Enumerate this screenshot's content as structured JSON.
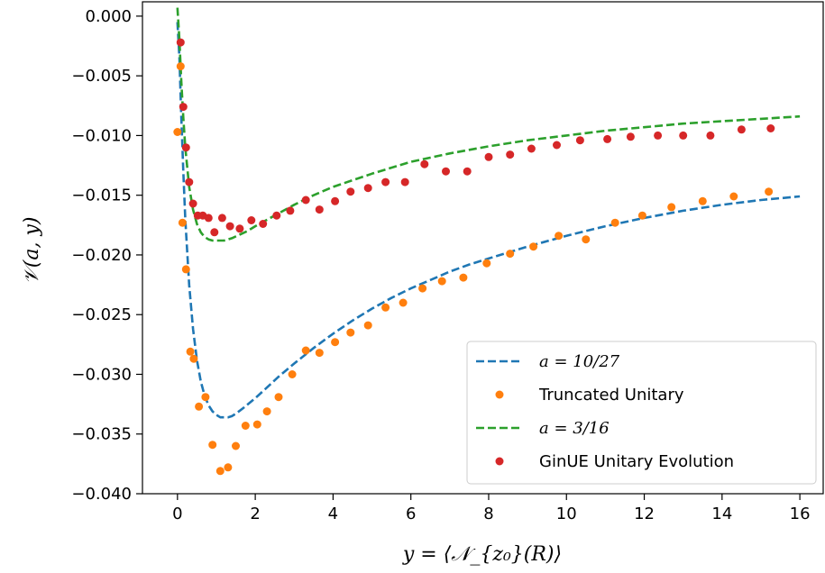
{
  "chart_data": {
    "type": "scatter",
    "xlabel": "y = ⟨𝒩_{z₀}(R)⟩",
    "ylabel": "𝒱(a, y)",
    "xlim": [
      -0.9,
      16.6
    ],
    "ylim": [
      -0.04,
      0.0012
    ],
    "x_ticks": [
      0,
      2,
      4,
      6,
      8,
      10,
      12,
      14,
      16
    ],
    "y_ticks": [
      0.0,
      -0.005,
      -0.01,
      -0.015,
      -0.02,
      -0.025,
      -0.03,
      -0.035,
      -0.04
    ],
    "x_tick_labels": [
      "0",
      "2",
      "4",
      "6",
      "8",
      "10",
      "12",
      "14",
      "16"
    ],
    "y_tick_labels": [
      "0.000",
      "−0.005",
      "−0.010",
      "−0.015",
      "−0.020",
      "−0.025",
      "−0.030",
      "−0.035",
      "−0.040"
    ],
    "grid": false,
    "legend_position": "lower-right",
    "series": [
      {
        "name": "a = 10/27",
        "style": "dashed",
        "color": "#1f77b4",
        "x": [
          0.0,
          0.05,
          0.1,
          0.15,
          0.2,
          0.3,
          0.4,
          0.5,
          0.6,
          0.7,
          0.8,
          0.9,
          1.0,
          1.1,
          1.2,
          1.3,
          1.4,
          1.5,
          1.7,
          2.0,
          2.3,
          2.6,
          3.0,
          3.5,
          4.0,
          4.5,
          5.0,
          5.5,
          6.0,
          6.5,
          7.0,
          7.5,
          8.0,
          9.0,
          10.0,
          11.0,
          12.0,
          13.0,
          14.0,
          15.0,
          16.0
        ],
        "y": [
          -0.0005,
          -0.0035,
          -0.0085,
          -0.013,
          -0.017,
          -0.0225,
          -0.0262,
          -0.0288,
          -0.0306,
          -0.0318,
          -0.0326,
          -0.0331,
          -0.0334,
          -0.0336,
          -0.0336,
          -0.0336,
          -0.0335,
          -0.0333,
          -0.0328,
          -0.032,
          -0.0311,
          -0.0302,
          -0.0291,
          -0.0278,
          -0.0266,
          -0.0255,
          -0.0245,
          -0.0236,
          -0.0228,
          -0.0221,
          -0.0214,
          -0.0208,
          -0.0203,
          -0.0193,
          -0.0184,
          -0.0176,
          -0.0169,
          -0.0163,
          -0.0158,
          -0.0154,
          -0.0151
        ]
      },
      {
        "name": "Truncated Unitary",
        "style": "markers",
        "color": "#ff7f0e",
        "x": [
          0.0,
          0.08,
          0.13,
          0.22,
          0.33,
          0.42,
          0.55,
          0.72,
          0.9,
          1.1,
          1.3,
          1.5,
          1.75,
          2.05,
          2.3,
          2.6,
          2.95,
          3.3,
          3.65,
          4.05,
          4.45,
          4.9,
          5.35,
          5.8,
          6.3,
          6.8,
          7.35,
          7.95,
          8.55,
          9.15,
          9.8,
          10.5,
          11.25,
          11.95,
          12.7,
          13.5,
          14.3,
          15.2
        ],
        "y": [
          -0.0097,
          -0.0042,
          -0.0173,
          -0.0212,
          -0.0281,
          -0.0287,
          -0.0327,
          -0.0319,
          -0.0359,
          -0.0381,
          -0.0378,
          -0.036,
          -0.0343,
          -0.0342,
          -0.0331,
          -0.0319,
          -0.03,
          -0.028,
          -0.0282,
          -0.0273,
          -0.0265,
          -0.0259,
          -0.0244,
          -0.024,
          -0.0228,
          -0.0222,
          -0.0219,
          -0.0207,
          -0.0199,
          -0.0193,
          -0.0184,
          -0.0187,
          -0.0173,
          -0.0167,
          -0.016,
          -0.0155,
          -0.0151,
          -0.0147
        ]
      },
      {
        "name": "a = 3/16",
        "style": "dashed",
        "color": "#2ca02c",
        "x": [
          0.0,
          0.05,
          0.1,
          0.15,
          0.2,
          0.3,
          0.4,
          0.5,
          0.6,
          0.7,
          0.8,
          0.9,
          1.0,
          1.1,
          1.2,
          1.3,
          1.4,
          1.6,
          1.8,
          2.0,
          2.5,
          3.0,
          3.5,
          4.0,
          5.0,
          6.0,
          7.0,
          8.0,
          9.0,
          10.0,
          11.0,
          12.0,
          13.0,
          14.0,
          15.0,
          16.0
        ],
        "y": [
          0.0007,
          -0.002,
          -0.0055,
          -0.0085,
          -0.011,
          -0.0143,
          -0.0162,
          -0.0174,
          -0.0181,
          -0.0185,
          -0.0187,
          -0.0188,
          -0.0188,
          -0.0188,
          -0.0188,
          -0.0187,
          -0.0186,
          -0.0183,
          -0.018,
          -0.0176,
          -0.0167,
          -0.0158,
          -0.015,
          -0.0143,
          -0.0132,
          -0.0122,
          -0.0115,
          -0.0109,
          -0.0104,
          -0.01,
          -0.0096,
          -0.0093,
          -0.009,
          -0.0088,
          -0.0086,
          -0.0084
        ]
      },
      {
        "name": "GinUE Unitary Evolution",
        "style": "markers",
        "color": "#d62728",
        "x": [
          0.08,
          0.15,
          0.22,
          0.3,
          0.4,
          0.52,
          0.65,
          0.8,
          0.95,
          1.15,
          1.35,
          1.6,
          1.9,
          2.2,
          2.55,
          2.9,
          3.3,
          3.65,
          4.05,
          4.45,
          4.9,
          5.35,
          5.85,
          6.35,
          6.9,
          7.45,
          8.0,
          8.55,
          9.1,
          9.75,
          10.35,
          11.05,
          11.65,
          12.35,
          13.0,
          13.7,
          14.5,
          15.25
        ],
        "y": [
          -0.0022,
          -0.0076,
          -0.011,
          -0.0139,
          -0.0157,
          -0.0167,
          -0.0167,
          -0.0169,
          -0.0181,
          -0.0169,
          -0.0176,
          -0.0178,
          -0.0171,
          -0.0174,
          -0.0167,
          -0.0163,
          -0.0154,
          -0.0162,
          -0.0155,
          -0.0147,
          -0.0144,
          -0.0139,
          -0.0139,
          -0.0124,
          -0.013,
          -0.013,
          -0.0118,
          -0.0116,
          -0.0111,
          -0.0108,
          -0.0104,
          -0.0103,
          -0.0101,
          -0.01,
          -0.01,
          -0.01,
          -0.0095,
          -0.0094
        ]
      }
    ]
  }
}
